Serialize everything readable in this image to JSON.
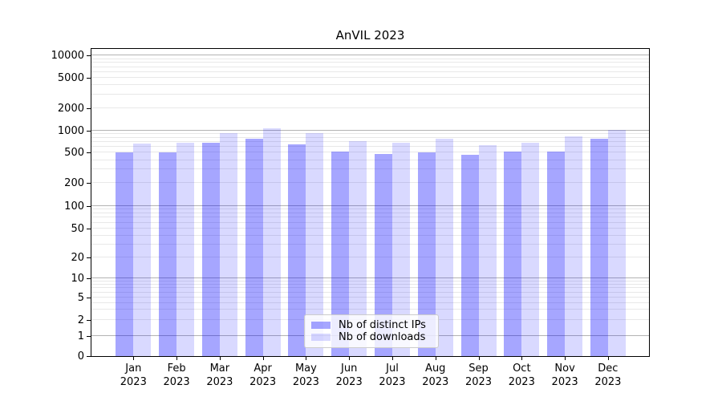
{
  "chart_data": {
    "type": "bar",
    "title": "AnVIL 2023",
    "categories": [
      "Jan",
      "Feb",
      "Mar",
      "Apr",
      "May",
      "Jun",
      "Jul",
      "Aug",
      "Sep",
      "Oct",
      "Nov",
      "Dec"
    ],
    "category_year": "2023",
    "series": [
      {
        "name": "Nb of distinct IPs",
        "color": "rgba(0,0,255,0.35)",
        "values": [
          500,
          500,
          680,
          775,
          655,
          525,
          485,
          505,
          465,
          515,
          515,
          775
        ]
      },
      {
        "name": "Nb of downloads",
        "color": "rgba(0,0,255,0.15)",
        "values": [
          665,
          690,
          910,
          1080,
          910,
          720,
          690,
          765,
          635,
          690,
          825,
          1020
        ]
      }
    ],
    "y_ticks": [
      0,
      1,
      2,
      5,
      10,
      20,
      50,
      100,
      200,
      500,
      1000,
      2000,
      5000,
      10000
    ],
    "y_scale": "asinh",
    "ylim": [
      0,
      12300
    ],
    "xlabel": "",
    "ylabel": "",
    "grid": {
      "enabled": true,
      "major_color": "#b3b3b3",
      "minor_color": "#e8e8e8"
    },
    "legend_position": "lower center",
    "background_color": "#ffffff"
  }
}
